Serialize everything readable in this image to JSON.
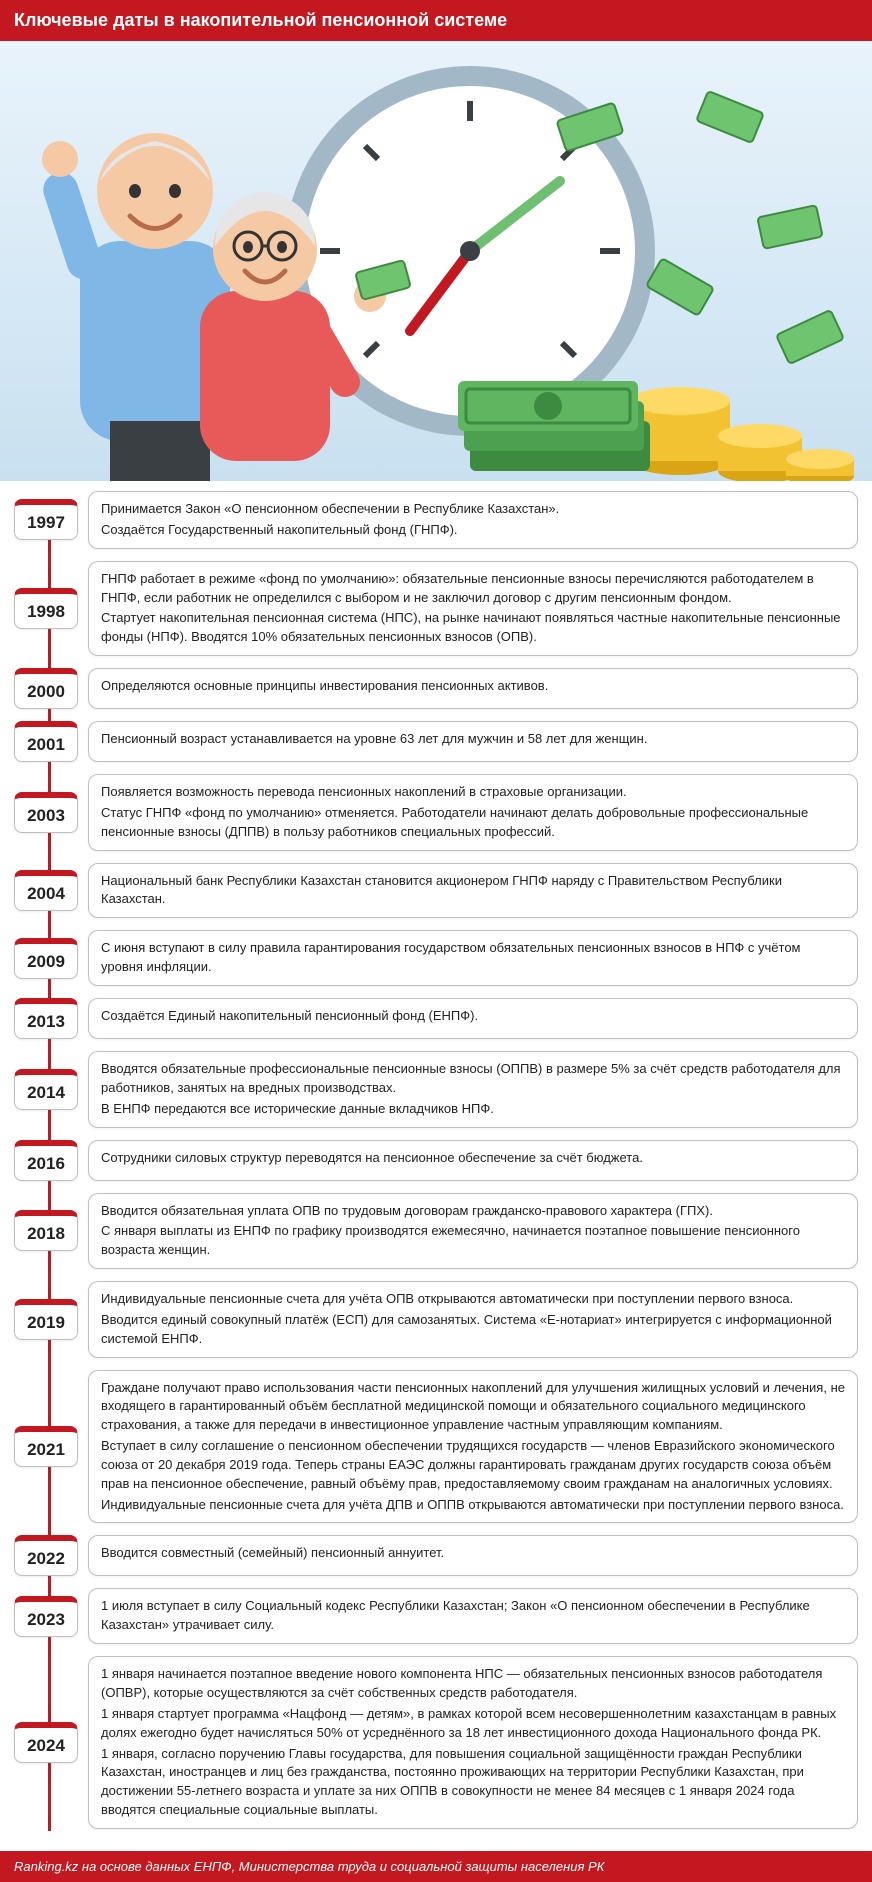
{
  "colors": {
    "accent": "#c3181f",
    "card_bg": "#ffffff",
    "card_border": "#bfbfbf",
    "text": "#222222",
    "hero_bg_top": "#e9f3fb",
    "hero_bg_bottom": "#c9e0f0",
    "clock_face": "#ffffff",
    "clock_rim": "#a3b8c7",
    "clock_hand1": "#6fbf73",
    "clock_hand2": "#c3181f",
    "money_green": "#5fb560",
    "coin_gold": "#f2c233",
    "coin_gold_dark": "#d9a514",
    "man_shirt": "#7fb8e6",
    "man_pants": "#3a3f44",
    "woman_top": "#e85a5a",
    "skin": "#f5c9a3",
    "hair": "#e6e6e6"
  },
  "header": {
    "title": "Ключевые даты в накопительной пенсионной системе"
  },
  "timeline": [
    {
      "year": "1997",
      "paras": [
        "Принимается Закон «О пенсионном обеспечении в Республике Казахстан».",
        "Создаётся Государственный накопительный фонд (ГНПФ)."
      ]
    },
    {
      "year": "1998",
      "paras": [
        "ГНПФ работает в режиме «фонд по умолчанию»: обязательные пенсионные взносы перечисляются работодателем в ГНПФ, если работник не определился с выбором и не заключил договор с другим пенсионным фондом.",
        "Стартует накопительная пенсионная система (НПС), на рынке начинают появляться частные накопительные пенсионные фонды (НПФ). Вводятся 10% обязательных пенсионных взносов (ОПВ)."
      ]
    },
    {
      "year": "2000",
      "paras": [
        "Определяются основные принципы инвестирования пенсионных активов."
      ]
    },
    {
      "year": "2001",
      "paras": [
        "Пенсионный возраст устанавливается на уровне 63 лет для мужчин и 58 лет для женщин."
      ]
    },
    {
      "year": "2003",
      "paras": [
        "Появляется возможность перевода пенсионных накоплений в страховые организации.",
        "Статус ГНПФ «фонд по умолчанию» отменяется. Работодатели начинают делать добровольные профессиональные пенсионные взносы (ДППВ) в пользу работников специальных профессий."
      ]
    },
    {
      "year": "2004",
      "paras": [
        "Национальный банк Республики Казахстан становится акционером ГНПФ наряду с Правительством Республики Казахстан."
      ]
    },
    {
      "year": "2009",
      "paras": [
        "С июня вступают в силу правила гарантирования государством обязательных пенсионных взносов в НПФ с учётом уровня инфляции."
      ]
    },
    {
      "year": "2013",
      "paras": [
        "Создаётся Единый накопительный пенсионный фонд (ЕНПФ)."
      ]
    },
    {
      "year": "2014",
      "paras": [
        "Вводятся обязательные профессиональные пенсионные взносы (ОППВ) в размере 5% за счёт средств работодателя для работников, занятых на вредных производствах.",
        "В ЕНПФ передаются все исторические данные вкладчиков НПФ."
      ]
    },
    {
      "year": "2016",
      "paras": [
        "Сотрудники силовых структур переводятся на пенсионное обеспечение за счёт бюджета."
      ]
    },
    {
      "year": "2018",
      "paras": [
        "Вводится обязательная уплата ОПВ по трудовым договорам гражданско-правового характера (ГПХ).",
        "С января выплаты из ЕНПФ по графику производятся ежемесячно, начинается поэтапное повышение пенсионного возраста женщин."
      ]
    },
    {
      "year": "2019",
      "paras": [
        "Индивидуальные пенсионные счета для учёта ОПВ открываются автоматически при поступлении первого взноса.",
        "Вводится единый совокупный платёж (ЕСП) для самозанятых. Система «Е-нотариат» интегрируется с информационной системой ЕНПФ."
      ]
    },
    {
      "year": "2021",
      "paras": [
        "Граждане получают право использования части пенсионных накоплений для улучшения жилищных условий и лечения, не входящего в гарантированный объём бесплатной медицинской помощи и обязательного социального медицинского страхования, а также для передачи в инвестиционное управление частным управляющим компаниям.",
        "Вступает в силу соглашение о пенсионном обеспечении трудящихся государств — членов Евразийского экономического союза от 20 декабря 2019 года. Теперь страны ЕАЭС должны гарантировать гражданам других государств союза объём прав на пенсионное обеспечение, равный объёму прав, предоставляемому своим гражданам на аналогичных условиях.",
        "Индивидуальные пенсионные счета для учёта ДПВ и ОППВ открываются автоматически при поступлении первого взноса."
      ]
    },
    {
      "year": "2022",
      "paras": [
        "Вводится совместный (семейный) пенсионный аннуитет."
      ]
    },
    {
      "year": "2023",
      "paras": [
        "1 июля вступает в силу Социальный кодекс Республики Казахстан; Закон «О пенсионном обеспечении в Республике Казахстан» утрачивает силу."
      ]
    },
    {
      "year": "2024",
      "paras": [
        "1 января начинается поэтапное введение нового компонента НПС — обязательных пенсионных взносов работодателя (ОПВР), которые осуществляются за счёт собственных средств работодателя.",
        "1 января стартует программа «Нацфонд — детям», в рамках которой всем несовершеннолетним казахстанцам в равных долях ежегодно будет начисляться 50% от усреднённого за 18 лет инвестиционного дохода Национального фонда РК.",
        "1 января, согласно поручению Главы государства, для повышения социальной защищённости граждан Республики Казахстан, иностранцев и лиц без гражданства, постоянно проживающих на территории Республики Казахстан, при достижении 55-летнего возраста и уплате за них ОППВ в совокупности не менее 84 месяцев с 1 января 2024 года вводятся специальные социальные выплаты."
      ]
    }
  ],
  "footer": {
    "text": "Ranking.kz на основе данных ЕНПФ, Министерства труда и социальной защиты населения РК"
  }
}
